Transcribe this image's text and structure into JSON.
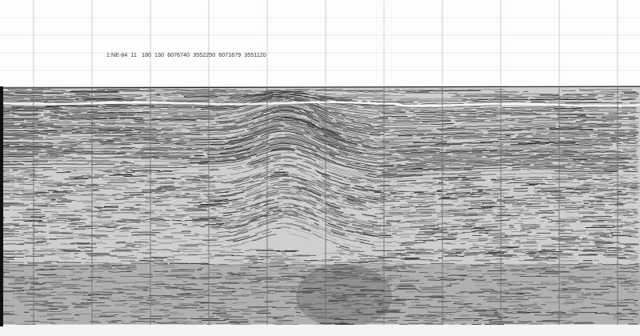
{
  "profile": {
    "header_label": "1:NE-84  11   180  130  6076740  3552250  6071679  3551120"
  },
  "colors": {
    "paper": "#fdfdfd",
    "trace": "#222222",
    "grid": "#bbbbbb"
  }
}
